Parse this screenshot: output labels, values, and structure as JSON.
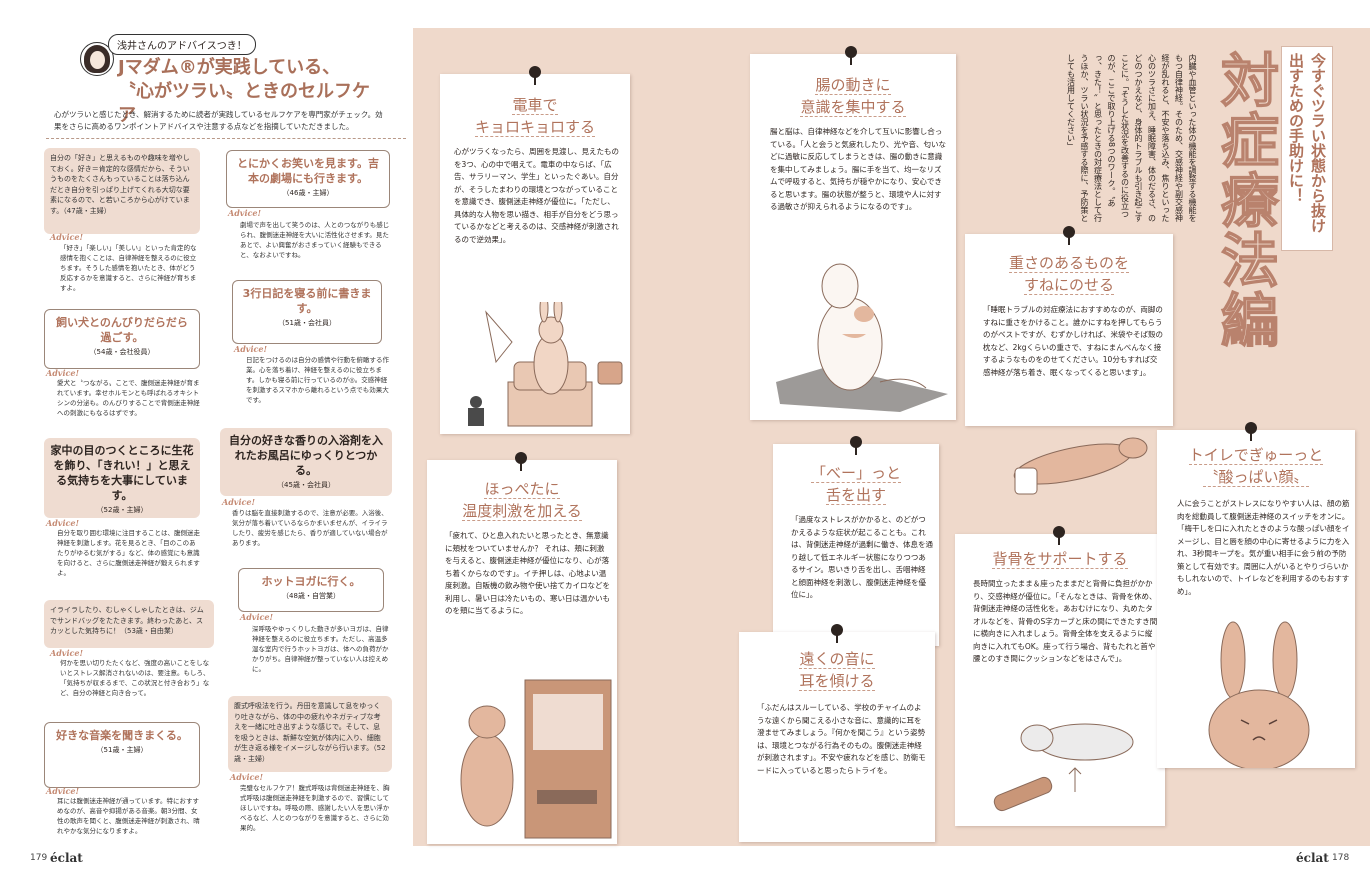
{
  "left_page": {
    "page_number": "179",
    "brand": "éclat",
    "advisor_tag": "浅井さんのアドバイスつき！",
    "title_line1": "Jマダム®が実践している、",
    "title_line2": "〝心がツラい〟ときのセルフケア",
    "lead": "心がツラいと感じたとき、解消するために読者が実践しているセルフケアを専門家がチェック。効果をさらに高めるワンポイントアドバイスや注意する点などを指摘していただきました。",
    "advice_label": "Advice!",
    "cards": [
      {
        "text": "自分の「好き」と思えるものや趣味を増やしておく。好き＝肯定的な感情だから、そういうものをたくさんもっていることは落ち込んだとき自分を引っぱり上げてくれる大切な要素になるので、と若いころから心がけています。（47歳・主婦）",
        "advice": "「好き」「楽しい」「美しい」といった肯定的な感情を抱くことは、自律神経を整えるのに役立ちます。そうした感情を抱いたとき、体がどう反応するかを意識すると、さらに神経が育ちますよ。"
      },
      {
        "title": "とにかくお笑いを見ます。吉本の劇場にも行きます。",
        "who": "（46歳・主婦）",
        "advice": "劇場で声を出して笑うのは、人とのつながりも感じられ、腹側迷走神経を大いに活性化させます。見たあとで、よい興奮がおさまっていく経験もできると、なおよいですね。"
      },
      {
        "title": "飼い犬とのんびりだらだら過ごす。",
        "who": "（54歳・会社役員）",
        "advice": "愛犬と〝つながる〟ことで、腹側迷走神経が育まれています。幸せホルモンとも呼ばれるオキシトシンの分泌も。のんびりすることで背側迷走神経への刺激にもなるはずです。"
      },
      {
        "title": "3行日記を寝る前に書きます。",
        "who": "（51歳・会社員）",
        "advice": "日記をつけるのは自分の感情や行動を俯瞰する作業。心を落ち着け、神経を整えるのに役立ちます。しかも寝る前に行っているのが◎。交感神経を刺激するスマホから離れるという点でも効果大です。"
      },
      {
        "title": "家中の目のつくところに生花を飾り、「きれい！」と思える気持ちを大事にしています。",
        "who": "（52歳・主婦）",
        "advice": "自分を取り囲む環境に注目することは、腹側迷走神経を刺激します。花を見るとき、「目のこのあたりがゆるむ気がする」など、体の感覚にも意識を向けると、さらに腹側迷走神経が鍛えられますよ。"
      },
      {
        "title": "自分の好きな香りの入浴剤を入れたお風呂にゆっくりとつかる。",
        "who": "（45歳・会社員）",
        "advice": "香りは脳を直接刺激するので、注意が必要。入浴後、気分が落ち着いているならかまいませんが、イライラしたり、疲労を感じたら、香りが適していない場合があります。"
      },
      {
        "text": "イライラしたり、むしゃくしゃしたときは、ジムでサンドバッグをたたきます。終わったあと、スカッとした気持ちに！（53歳・自由業）",
        "advice": "何かを思い切りたたくなど、強度の高いことをしないとストレス解消されないのは、要注意。もしろ、「気持ちが収まるまで、この状況と付き合おう」など、自分の神経と向き合って。"
      },
      {
        "title": "ホットヨガに行く。",
        "who": "（48歳・自営業）",
        "advice": "深呼吸やゆっくりした動きが多いヨガは、自律神経を整えるのに役立ちます。ただし、高温多湿な室内で行うホットヨガは、体への負荷がかかりがち。自律神経が整っていない人は控えめに。"
      },
      {
        "title": "好きな音楽を聞きまくる。",
        "who": "（51歳・主婦）",
        "advice": "耳には腹側迷走神経が通っています。特におすすめなのが、高音や抑揚がある音楽。朝3分間、女性の歌声を聞くと、腹側迷走神経が刺激され、晴れやかな気分になりますよ。"
      },
      {
        "text": "腹式呼吸法を行う。丹田を意識して息をゆっくり吐きながら、体の中の疲れやネガティブな考えを一緒に吐き出すような感じで。そして、息を吸うときは、新鮮な空気が体内に入り、細胞が生き返る様をイメージしながら行います。（52歳・主婦）",
        "advice": "完璧なセルフケア！腹式呼吸は背側迷走神経を、胸式呼吸は腹側迷走神経を刺激するので、習慣にしてほしいですね。呼吸の際、感謝したい人を思い浮かべるなど、人とのつながりを意識すると、さらに効果的。"
      }
    ]
  },
  "right_page": {
    "page_number": "178",
    "brand": "éclat",
    "main_title": "対症療法編",
    "sub_title": "今すぐツラい状態から抜け出すための手助けに！",
    "intro": "内臓や血管といった体の機能を調整する機能をもつ自律神経。そのため、交感神経や副交感神経が乱れると、不安や落ち込み、焦りといった心のツラさに加え、睡眠障害、体のだるさ、のどのつかえなど、身体的トラブルも引き起こすことに。「そうした状況を改善するのに役立つのが、ここで取り上げる8つのワーク。〝あっ、きた！〟と思ったときの対症療法として行うほか、ツラい状況を予感する際に、予防策としても活用してください」",
    "panels": [
      {
        "title1": "電車で",
        "title2": "キョロキョロする",
        "body": "心がツラくなったら、周囲を見渡し、見えたものを3つ、心の中で唱えて。電車の中ならば、「広告、サラリーマン、学生」といったぐあい。自分が、そうしたまわりの環境とつながっていることを意識でき、腹側迷走神経が優位に。「ただし、具体的な人物を思い描き、相手が自分をどう思っているかなどと考えるのは、交感神経が刺激されるので逆効果」。"
      },
      {
        "title1": "腸の動きに",
        "title2": "意識を集中する",
        "body": "腸と脳は、自律神経などを介して互いに影響し合っている。「人と会うと気疲れしたり、光や音、匂いなどに過敏に反応してしまうときは、腸の動きに意識を集中してみましょう。腸に手を当て、均一なリズムで呼吸すると、気持ちが穏やかになり、安心できると思います。腸の状態が整うと、環境や人に対する過敏さが抑えられるようになるのです」。"
      },
      {
        "title1": "重さのあるものを",
        "title2": "すねにのせる",
        "body": "「睡眠トラブルの対症療法におすすめなのが、両脚のすねに重さをかけること。誰かにすねを押してもらうのがベストですが、むずかしければ、米袋やそば殻の枕など、2kgくらいの重さで、すねにまんべんなく接するようなものをのせてください。10分もすれば交感神経が落ち着き、眠くなってくると思います」。"
      },
      {
        "title1": "ほっぺたに",
        "title2": "温度刺激を加える",
        "body": "「疲れて、ひと息入れたいと思ったとき、無意識に頬杖をついていませんか？ それは、頬に刺激を与えると、腹側迷走神経が優位になり、心が落ち着くからなのです」。イチ押しは、心地よい温度刺激。自販機の飲み物や使い捨てカイロなどを利用し、暑い日は冷たいもの、寒い日は温かいものを頬に当てるように。"
      },
      {
        "title1": "「べー」っと",
        "title2": "舌を出す",
        "body": "「過度なストレスがかかると、のどがつかえるような症状が起こることも。これは、背側迷走神経が過剰に働き、体息を通り越して低エネルギー状態になりつつあるサイン。思いきり舌を出し、舌咽神経と顔面神経を刺激し、腹側迷走神経を優位に」。"
      },
      {
        "title1": "背骨をサポートする",
        "title2": "",
        "body": "長時間立ったまま＆座ったままだと背骨に負担がかかり、交感神経が優位に。「そんなときは、背骨を休め、背側迷走神経の活性化を。あおむけになり、丸めたタオルなどを、背骨のS字カーブと床の間にできたすき間に横向きに入れましょう。背骨全体を支えるように縦向きに入れてもOK。座って行う場合、背もたれと首や腰とのすき間にクッションなどをはさんで」。"
      },
      {
        "title1": "遠くの音に",
        "title2": "耳を傾ける",
        "body": "「ふだんはスルーしている、学校のチャイムのような遠くから聞こえる小さな音に、意識的に耳を澄ませてみましょう。『何かを聞こう』という姿勢は、環境とつながる行為そのもの。腹側迷走神経が刺激されます」。不安や疲れなどを感じ、防衛モードに入っていると思ったらトライを。"
      },
      {
        "title1": "トイレでぎゅーっと",
        "title2": "〝酸っぱい顔〟",
        "body": "人に会うことがストレスになりやすい人は、顔の筋肉を総動員して腹側迷走神経のスイッチをオンに。「梅干しを口に入れたときのような酸っぱい顔をイメージし、目と唇を顔の中心に寄せるように力を入れ、3秒間キープを。気が重い相手に会う前の予防策として有効です。周囲に人がいるとやりづらいかもしれないので、トイレなどを利用するのもおすすめ」。"
      }
    ]
  },
  "colors": {
    "accent": "#b0735c",
    "panel_bg": "#efd9cb",
    "card_fill": "#efdcd1"
  }
}
